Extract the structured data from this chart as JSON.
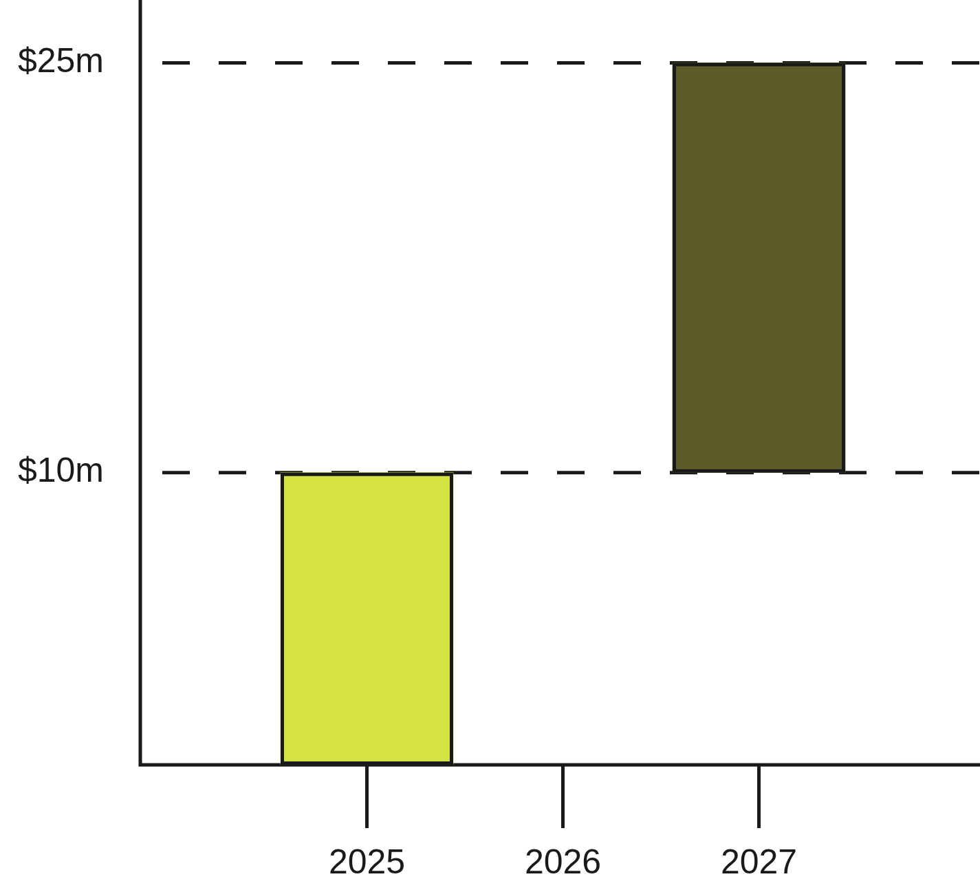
{
  "chart_data": {
    "type": "bar",
    "categories": [
      "2025",
      "2026",
      "2027"
    ],
    "values": [
      10.7,
      null,
      15
    ],
    "base": [
      -0.7,
      null,
      10
    ],
    "colors": [
      "#d4e342",
      null,
      "#5c5c28"
    ],
    "ylim": [
      -0.7,
      27.3
    ],
    "yticks": [
      {
        "value": 10,
        "label": "$10m"
      },
      {
        "value": 25,
        "label": "$25m"
      }
    ],
    "grid": "y"
  }
}
